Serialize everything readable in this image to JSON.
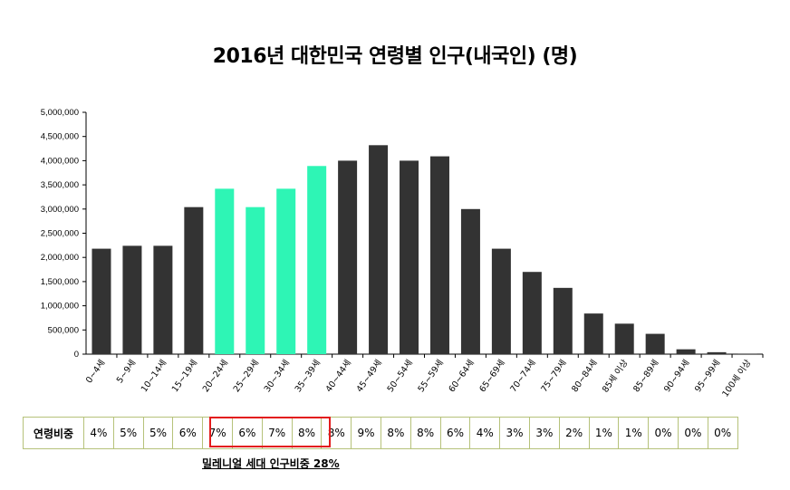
{
  "chart_data": {
    "type": "bar",
    "title": "2016년 대한민국 연령별 인구(내국인) (명)",
    "categories": [
      "0~4세",
      "5~9세",
      "10~14세",
      "15~19세",
      "20~24세",
      "25~29세",
      "30~34세",
      "35~39세",
      "40~44세",
      "45~49세",
      "50~54세",
      "55~59세",
      "60~64세",
      "65~69세",
      "70~74세",
      "75~79세",
      "80~84세",
      "85세 이상",
      "85~89세",
      "90~94세",
      "95~99세",
      "100세 이상"
    ],
    "values": [
      2180000,
      2240000,
      2240000,
      3040000,
      3420000,
      3040000,
      3420000,
      3890000,
      4000000,
      4320000,
      4000000,
      4090000,
      3000000,
      2180000,
      1700000,
      1370000,
      840000,
      630000,
      420000,
      100000,
      40000,
      5000
    ],
    "highlight_indices": [
      4,
      5,
      6,
      7
    ],
    "colors": {
      "default": "#333333",
      "highlight": "#2ef5b5"
    },
    "ylim": [
      0,
      5000000
    ],
    "yticks": [
      "5,000,000",
      "4,500,000",
      "4,000,000",
      "3,500,000",
      "3,000,000",
      "2,500,000",
      "2,000,000",
      "1,500,000",
      "1,000,000",
      "500,000",
      "0"
    ],
    "xlabel": "",
    "ylabel": "",
    "grid": false
  },
  "share_table": {
    "header": "연령비중",
    "values": [
      "4%",
      "5%",
      "5%",
      "6%",
      "7%",
      "6%",
      "7%",
      "8%",
      "8%",
      "9%",
      "8%",
      "8%",
      "6%",
      "4%",
      "3%",
      "3%",
      "2%",
      "1%",
      "1%",
      "0%",
      "0%",
      "0%"
    ]
  },
  "millennial_note": "밀레니얼 세대  인구비중 28%",
  "colors": {
    "table_border": "#b6c27a",
    "highlight_box": "#e31b1b"
  }
}
